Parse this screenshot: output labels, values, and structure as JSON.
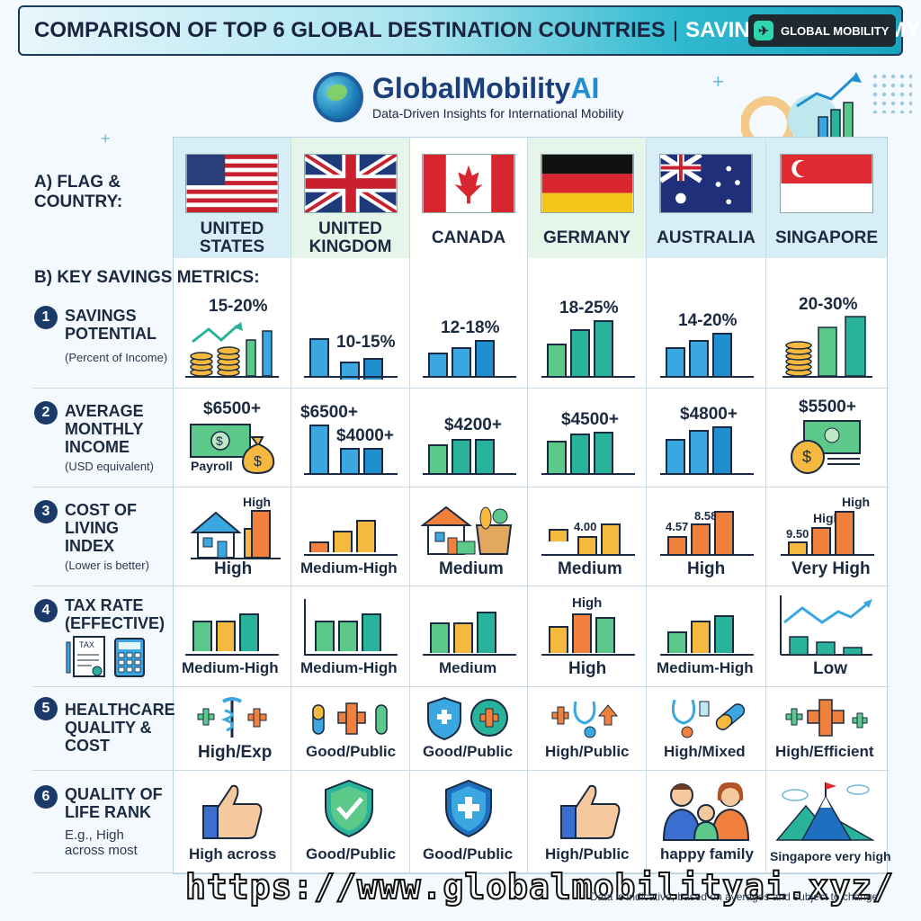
{
  "banner": {
    "title": "COMPARISON OF TOP 6 GLOBAL DESTINATION COUNTRIES",
    "separator": "|",
    "subtitle": "SAVINGS & ECONOMY",
    "badge_label": "GLOBAL MOBILITY",
    "badge_icon": "plane-icon"
  },
  "logo": {
    "name_main": "GlobalMobility",
    "name_ai": "AI",
    "tagline": "Data-Driven Insights for International Mobility"
  },
  "section_a": "A) FLAG &\nCOUNTRY:",
  "section_b": "B) KEY SAVINGS METRICS:",
  "countries": [
    {
      "name": "UNITED\nSTATES",
      "flag": "us-flag"
    },
    {
      "name": "UNITED\nKINGDOM",
      "flag": "uk-flag"
    },
    {
      "name": "CANADA",
      "flag": "canada-flag"
    },
    {
      "name": "GERMANY",
      "flag": "germany-flag"
    },
    {
      "name": "AUSTRALIA",
      "flag": "australia-flag"
    },
    {
      "name": "SINGAPORE",
      "flag": "singapore-flag"
    }
  ],
  "metrics": [
    {
      "num": "1",
      "title": "SAVINGS\nPOTENTIAL",
      "sub": "(Percent of Income)",
      "values": [
        "15-20%",
        "10-15%",
        "12-18%",
        "18-25%",
        "14-20%",
        "20-30%"
      ]
    },
    {
      "num": "2",
      "title": "AVERAGE\nMONTHLY\nINCOME",
      "sub": "(USD equivalent)",
      "values": [
        "$6500+",
        "$6500+",
        "$4200+",
        "$4500+",
        "$4800+",
        "$5500+"
      ],
      "extra": {
        "payroll": "Payroll",
        "uk_second": "$4000+"
      }
    },
    {
      "num": "3",
      "title": "COST OF\nLIVING\nINDEX",
      "sub": "(Lower is better)",
      "values": [
        "High",
        "Medium-High",
        "Medium",
        "Medium",
        "High",
        "Very High"
      ],
      "extra": {
        "us_top": "High",
        "de_mid": "4.00",
        "au_a": "4.57",
        "au_b": "8.58",
        "sg_a": "9.50",
        "sg_b": "High",
        "sg_c": "High"
      }
    },
    {
      "num": "4",
      "title": "TAX RATE\n(EFFECTIVE)",
      "sub": "",
      "values": [
        "Medium-High",
        "Medium-High",
        "Medium",
        "High",
        "Medium-High",
        "Low"
      ],
      "extra": {
        "de_top": "High",
        "tax_icon_label": "TAX"
      }
    },
    {
      "num": "5",
      "title": "HEALTHCARE\nQUALITY &\nCOST",
      "sub": "",
      "values": [
        "High/Exp",
        "Good/Public",
        "Good/Public",
        "High/Public",
        "High/Mixed",
        "High/Efficient"
      ]
    },
    {
      "num": "6",
      "title": "QUALITY OF\nLIFE RANK",
      "sub": "E.g., High\nacross most",
      "values": [
        "High across",
        "Good/Public",
        "Good/Public",
        "High/Public",
        "happy family",
        "Singapore very high"
      ]
    }
  ],
  "chart_data": [
    {
      "type": "bar",
      "categories": [
        "UNITED STATES",
        "UNITED KINGDOM",
        "CANADA",
        "GERMANY",
        "AUSTRALIA",
        "SINGAPORE"
      ],
      "values_label": [
        "15-20%",
        "10-15%",
        "12-18%",
        "18-25%",
        "14-20%",
        "20-30%"
      ]
    }
  ],
  "footer": {
    "url": "https://www.globalmobilityai.xyz/",
    "note": "Data is indicative, based on averages and subject to change."
  },
  "colors": {
    "blue": "#3aa7e0",
    "teal": "#28b39a",
    "green": "#5cc98a",
    "orange": "#f0803c",
    "yellow": "#f5b940",
    "navy": "#1b3a6a"
  }
}
